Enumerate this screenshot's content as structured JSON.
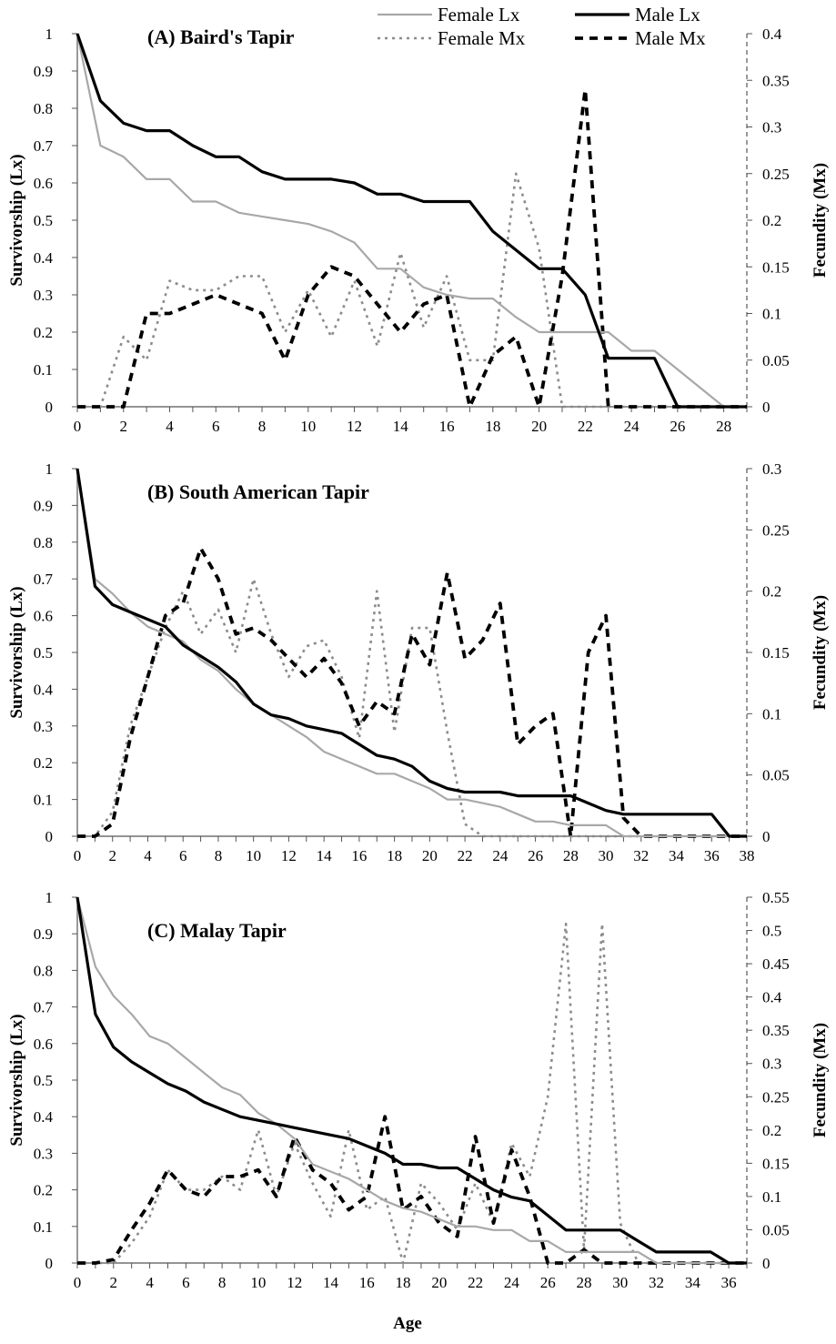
{
  "figure": {
    "xlabel": "Age",
    "legend": {
      "position": "top-right",
      "entries": [
        {
          "key": "female_lx",
          "label": "Female Lx"
        },
        {
          "key": "male_lx",
          "label": "Male Lx"
        },
        {
          "key": "female_mx",
          "label": "Female Mx"
        },
        {
          "key": "male_mx",
          "label": "Male Mx"
        }
      ]
    },
    "colors": {
      "female_lx": "#a8a8a8",
      "male_lx": "#000000",
      "female_mx": "#8c8c8c",
      "male_mx": "#000000"
    }
  },
  "chart_data": [
    {
      "type": "line",
      "title": "(A) Baird's Tapir",
      "ylabel": "Survivorship (Lx)",
      "y2label": "Fecundity (Mx)",
      "xlim": [
        0,
        29
      ],
      "ylim": [
        0,
        1
      ],
      "y2lim": [
        0,
        0.4
      ],
      "x_ticks": [
        0,
        2,
        4,
        6,
        8,
        10,
        12,
        14,
        16,
        18,
        20,
        22,
        24,
        26,
        28
      ],
      "y_ticks": [
        "0",
        "0.1",
        "0.2",
        "0.3",
        "0.4",
        "0.5",
        "0.6",
        "0.7",
        "0.8",
        "0.9",
        "1"
      ],
      "y2_ticks": [
        "0",
        "0.05",
        "0.1",
        "0.15",
        "0.2",
        "0.25",
        "0.3",
        "0.35",
        "0.4"
      ],
      "x": [
        0,
        1,
        2,
        3,
        4,
        5,
        6,
        7,
        8,
        9,
        10,
        11,
        12,
        13,
        14,
        15,
        16,
        17,
        18,
        19,
        20,
        21,
        22,
        23,
        24,
        25,
        26,
        27,
        28,
        29
      ],
      "series": [
        {
          "key": "female_lx",
          "name": "Female Lx",
          "axis": "left",
          "values": [
            1,
            0.7,
            0.67,
            0.61,
            0.61,
            0.55,
            0.55,
            0.52,
            0.51,
            0.5,
            0.49,
            0.47,
            0.44,
            0.37,
            0.37,
            0.32,
            0.3,
            0.29,
            0.29,
            0.24,
            0.2,
            0.2,
            0.2,
            0.2,
            0.15,
            0.15,
            0.1,
            0.05,
            0,
            0
          ]
        },
        {
          "key": "male_lx",
          "name": "Male Lx",
          "axis": "left",
          "values": [
            1,
            0.82,
            0.76,
            0.74,
            0.74,
            0.7,
            0.67,
            0.67,
            0.63,
            0.61,
            0.61,
            0.61,
            0.6,
            0.57,
            0.57,
            0.55,
            0.55,
            0.55,
            0.47,
            0.42,
            0.37,
            0.37,
            0.3,
            0.13,
            0.13,
            0.13,
            0,
            0,
            0,
            0
          ]
        },
        {
          "key": "female_mx",
          "name": "Female Mx",
          "axis": "right",
          "values": [
            0,
            0,
            0.075,
            0.05,
            0.135,
            0.125,
            0.125,
            0.14,
            0.14,
            0.08,
            0.125,
            0.075,
            0.135,
            0.065,
            0.165,
            0.085,
            0.14,
            0.05,
            0.05,
            0.25,
            0.17,
            0,
            0,
            0,
            0,
            0,
            0,
            0,
            0,
            0
          ]
        },
        {
          "key": "male_mx",
          "name": "Male Mx",
          "axis": "right",
          "values": [
            0,
            0,
            0,
            0.1,
            0.1,
            0.11,
            0.12,
            0.11,
            0.1,
            0.05,
            0.12,
            0.15,
            0.14,
            0.11,
            0.08,
            0.11,
            0.12,
            0,
            0.055,
            0.075,
            0,
            0.14,
            0.34,
            0,
            0,
            0,
            0,
            0,
            0,
            0
          ]
        }
      ]
    },
    {
      "type": "line",
      "title": "(B) South American Tapir",
      "ylabel": "Survivorship (Lx)",
      "y2label": "Fecundity (Mx)",
      "xlim": [
        0,
        38
      ],
      "ylim": [
        0,
        1
      ],
      "y2lim": [
        0,
        0.3
      ],
      "x_ticks": [
        0,
        2,
        4,
        6,
        8,
        10,
        12,
        14,
        16,
        18,
        20,
        22,
        24,
        26,
        28,
        30,
        32,
        34,
        36,
        38
      ],
      "y_ticks": [
        "0",
        "0.1",
        "0.2",
        "0.3",
        "0.4",
        "0.5",
        "0.6",
        "0.7",
        "0.8",
        "0.9",
        "1"
      ],
      "y2_ticks": [
        "0",
        "0.05",
        "0.1",
        "0.15",
        "0.2",
        "0.25",
        "0.3"
      ],
      "x": [
        0,
        1,
        2,
        3,
        4,
        5,
        6,
        7,
        8,
        9,
        10,
        11,
        12,
        13,
        14,
        15,
        16,
        17,
        18,
        19,
        20,
        21,
        22,
        23,
        24,
        25,
        26,
        27,
        28,
        29,
        30,
        31,
        32,
        33,
        34,
        35,
        36,
        37,
        38
      ],
      "series": [
        {
          "key": "female_lx",
          "name": "Female Lx",
          "axis": "left",
          "values": [
            1,
            0.7,
            0.66,
            0.61,
            0.57,
            0.55,
            0.53,
            0.48,
            0.45,
            0.4,
            0.36,
            0.33,
            0.3,
            0.27,
            0.23,
            0.21,
            0.19,
            0.17,
            0.17,
            0.15,
            0.13,
            0.1,
            0.1,
            0.09,
            0.08,
            0.06,
            0.04,
            0.04,
            0.03,
            0.03,
            0.03,
            0,
            0,
            0,
            0,
            0,
            0,
            0,
            0
          ]
        },
        {
          "key": "male_lx",
          "name": "Male Lx",
          "axis": "left",
          "values": [
            1,
            0.68,
            0.63,
            0.61,
            0.59,
            0.57,
            0.52,
            0.49,
            0.46,
            0.42,
            0.36,
            0.33,
            0.32,
            0.3,
            0.29,
            0.28,
            0.25,
            0.22,
            0.21,
            0.19,
            0.15,
            0.13,
            0.12,
            0.12,
            0.12,
            0.11,
            0.11,
            0.11,
            0.11,
            0.09,
            0.07,
            0.06,
            0.06,
            0.06,
            0.06,
            0.06,
            0.06,
            0,
            0
          ]
        },
        {
          "key": "female_mx",
          "name": "Female Mx",
          "axis": "right",
          "values": [
            0,
            0,
            0.02,
            0.09,
            0.13,
            0.17,
            0.2,
            0.165,
            0.185,
            0.15,
            0.21,
            0.165,
            0.13,
            0.155,
            0.16,
            0.13,
            0.08,
            0.2,
            0.085,
            0.17,
            0.17,
            0.085,
            0.01,
            0,
            0,
            0,
            0,
            0,
            0,
            0,
            0,
            0,
            0,
            0,
            0,
            0,
            0,
            0,
            0
          ]
        },
        {
          "key": "male_mx",
          "name": "Male Mx",
          "axis": "right",
          "values": [
            0,
            0,
            0.01,
            0.08,
            0.13,
            0.18,
            0.19,
            0.235,
            0.21,
            0.165,
            0.17,
            0.16,
            0.145,
            0.13,
            0.145,
            0.125,
            0.09,
            0.11,
            0.1,
            0.165,
            0.14,
            0.215,
            0.145,
            0.16,
            0.19,
            0.075,
            0.09,
            0.1,
            0,
            0.15,
            0.18,
            0.015,
            0,
            0,
            0,
            0,
            0,
            0,
            0
          ]
        }
      ]
    },
    {
      "type": "line",
      "title": "(C) Malay Tapir",
      "ylabel": "Survivorship (Lx)",
      "y2label": "Fecundity (Mx)",
      "xlim": [
        0,
        37
      ],
      "ylim": [
        0,
        1
      ],
      "y2lim": [
        0,
        0.55
      ],
      "x_ticks": [
        0,
        2,
        4,
        6,
        8,
        10,
        12,
        14,
        16,
        18,
        20,
        22,
        24,
        26,
        28,
        30,
        32,
        34,
        36
      ],
      "y_ticks": [
        "0",
        "0.1",
        "0.2",
        "0.3",
        "0.4",
        "0.5",
        "0.6",
        "0.7",
        "0.8",
        "0.9",
        "1"
      ],
      "y2_ticks": [
        "0",
        "0.05",
        "0.1",
        "0.15",
        "0.2",
        "0.25",
        "0.3",
        "0.35",
        "0.4",
        "0.45",
        "0.5",
        "0.55"
      ],
      "x": [
        0,
        1,
        2,
        3,
        4,
        5,
        6,
        7,
        8,
        9,
        10,
        11,
        12,
        13,
        14,
        15,
        16,
        17,
        18,
        19,
        20,
        21,
        22,
        23,
        24,
        25,
        26,
        27,
        28,
        29,
        30,
        31,
        32,
        33,
        34,
        35,
        36,
        37
      ],
      "series": [
        {
          "key": "female_lx",
          "name": "Female Lx",
          "axis": "left",
          "values": [
            1,
            0.81,
            0.73,
            0.68,
            0.62,
            0.6,
            0.56,
            0.52,
            0.48,
            0.46,
            0.41,
            0.38,
            0.34,
            0.27,
            0.25,
            0.23,
            0.2,
            0.17,
            0.15,
            0.14,
            0.12,
            0.1,
            0.1,
            0.09,
            0.09,
            0.06,
            0.06,
            0.03,
            0.03,
            0.03,
            0.03,
            0.03,
            0,
            0,
            0,
            0,
            0,
            0
          ]
        },
        {
          "key": "male_lx",
          "name": "Male Lx",
          "axis": "left",
          "values": [
            1,
            0.68,
            0.59,
            0.55,
            0.52,
            0.49,
            0.47,
            0.44,
            0.42,
            0.4,
            0.39,
            0.38,
            0.37,
            0.36,
            0.35,
            0.34,
            0.32,
            0.3,
            0.27,
            0.27,
            0.26,
            0.26,
            0.23,
            0.2,
            0.18,
            0.17,
            0.13,
            0.09,
            0.09,
            0.09,
            0.09,
            0.06,
            0.03,
            0.03,
            0.03,
            0.03,
            0,
            0
          ]
        },
        {
          "key": "female_mx",
          "name": "Female Mx",
          "axis": "right",
          "values": [
            0,
            0,
            0,
            0.03,
            0.07,
            0.14,
            0.11,
            0.11,
            0.13,
            0.11,
            0.2,
            0.1,
            0.18,
            0.12,
            0.07,
            0.2,
            0.08,
            0.1,
            0,
            0.12,
            0.09,
            0.05,
            0.12,
            0.06,
            0.18,
            0.13,
            0.25,
            0.51,
            0.02,
            0.51,
            0.06,
            0,
            0,
            0,
            0,
            0,
            0,
            0
          ]
        },
        {
          "key": "male_mx",
          "name": "Male Mx",
          "axis": "right",
          "values": [
            0,
            0,
            0.005,
            0.05,
            0.09,
            0.14,
            0.11,
            0.1,
            0.13,
            0.13,
            0.14,
            0.1,
            0.19,
            0.14,
            0.12,
            0.08,
            0.1,
            0.22,
            0.08,
            0.1,
            0.06,
            0.04,
            0.19,
            0.06,
            0.17,
            0.1,
            0,
            0,
            0.02,
            0,
            0,
            0,
            0,
            0,
            0,
            0,
            0,
            0
          ]
        }
      ]
    }
  ]
}
